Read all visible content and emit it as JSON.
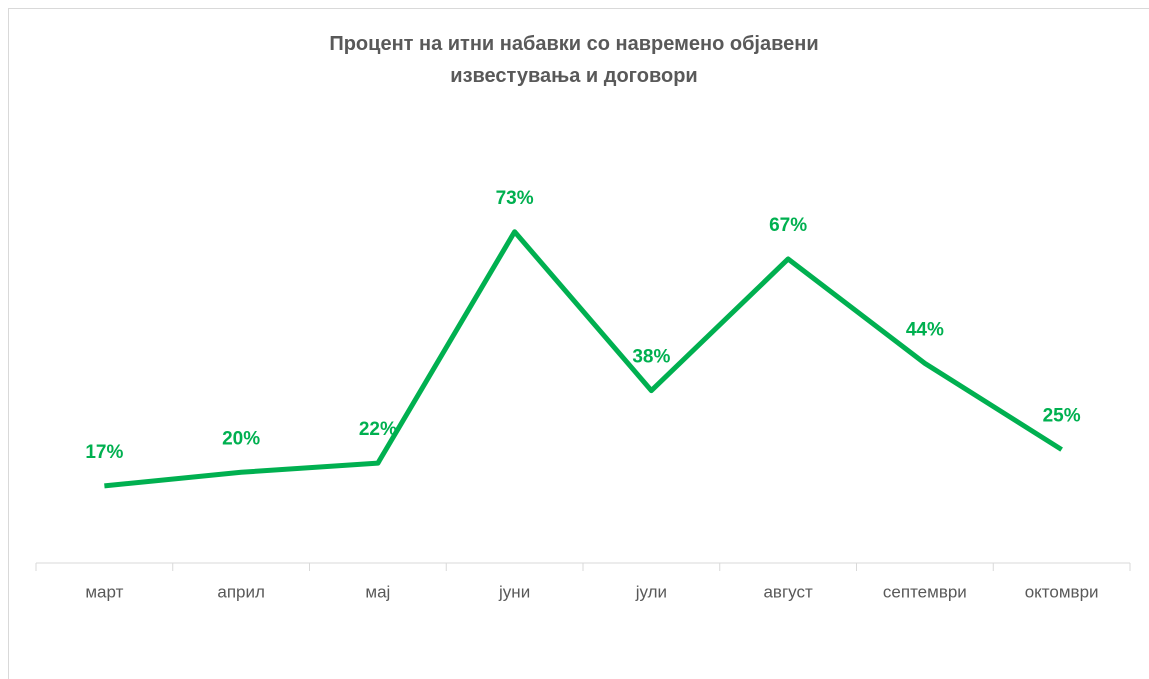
{
  "chart_data": {
    "type": "line",
    "title": "Процент на итни набавки со навремено објавени известувања и договори",
    "categories": [
      "март",
      "април",
      "мај",
      "јуни",
      "јули",
      "август",
      "септември",
      "октомври"
    ],
    "values": [
      17,
      20,
      22,
      73,
      38,
      67,
      44,
      25
    ],
    "value_labels": [
      "17%",
      "20%",
      "22%",
      "73%",
      "38%",
      "67%",
      "44%",
      "25%"
    ],
    "color": "#00b050",
    "ylim": [
      0,
      80
    ]
  }
}
